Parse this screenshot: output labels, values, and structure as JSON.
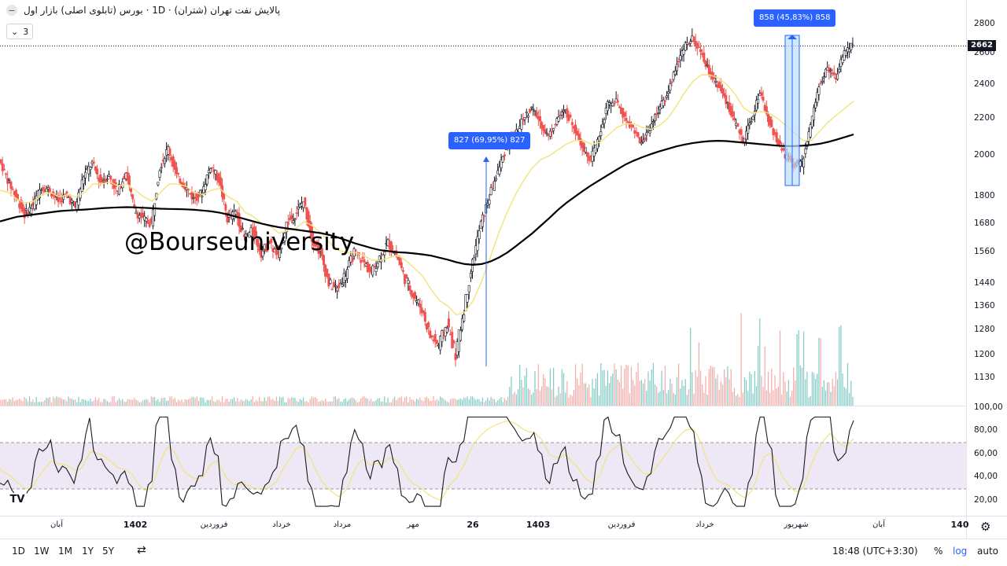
{
  "header": {
    "title": "پالایش نفت تهران (شتران) · 1D · بورس (تابلوی اصلی) بازار اول",
    "legend_value": "3"
  },
  "watermark": "@Bourseuniversity",
  "annotations": {
    "range1": "827 (69,95%) 827",
    "range2": "858 (45,83%) 858"
  },
  "current_price": "2662",
  "price_axis": [
    "2800",
    "2600",
    "2400",
    "2200",
    "2000",
    "1800",
    "1680",
    "1560",
    "1440",
    "1360",
    "1280",
    "1200",
    "1130"
  ],
  "rsi_axis": [
    "100,00",
    "80,00",
    "60,00",
    "40,00",
    "20,00"
  ],
  "time_axis": [
    {
      "label": "آبان",
      "bold": false
    },
    {
      "label": "1402",
      "bold": true
    },
    {
      "label": "فروردین",
      "bold": false
    },
    {
      "label": "خرداد",
      "bold": false
    },
    {
      "label": "مرداد",
      "bold": false
    },
    {
      "label": "مهر",
      "bold": false
    },
    {
      "label": "26",
      "bold": true
    },
    {
      "label": "1403",
      "bold": true
    },
    {
      "label": "فروردین",
      "bold": false
    },
    {
      "label": "خرداد",
      "bold": false
    },
    {
      "label": "شهریور",
      "bold": false
    },
    {
      "label": "آبان",
      "bold": false
    },
    {
      "label": "140",
      "bold": true
    }
  ],
  "toolbar": {
    "timeframes": [
      "1D",
      "1W",
      "1M",
      "1Y",
      "5Y"
    ],
    "time": "18:48 (UTC+3:30)",
    "percent": "%",
    "log": "log",
    "auto": "auto"
  },
  "colors": {
    "up": "#26a69a",
    "down": "#ef5350",
    "ma_fast": "#f2e47a",
    "ma_slow": "#000000",
    "rsi": "#1a1a1a",
    "rsi_band": "#ede7f6",
    "accent": "#2962ff"
  },
  "chart_data": {
    "type": "line",
    "title": "",
    "xlabel": "",
    "ylabel": "",
    "scale": "log",
    "ylim": [
      1080,
      2900
    ],
    "series": [
      {
        "values": [
          1980,
          1880,
          1800,
          1720,
          1760,
          1850,
          1830,
          1780,
          1810,
          1750,
          1900,
          1960,
          1870,
          1900,
          1820,
          1920,
          1740,
          1700,
          1680,
          1940,
          2040,
          1900,
          1850,
          1790,
          1820,
          1950,
          1880,
          1700,
          1730,
          1620,
          1650,
          1560,
          1600,
          1540,
          1680,
          1720,
          1780,
          1620,
          1560,
          1440,
          1420,
          1480,
          1560,
          1530,
          1480,
          1540,
          1600,
          1550,
          1460,
          1400,
          1350,
          1260,
          1230,
          1300,
          1200,
          1350,
          1520,
          1680,
          1800,
          1920,
          2040,
          2100,
          2200,
          2260,
          2180,
          2100,
          2200,
          2240,
          2160,
          2050,
          1980,
          2100,
          2280,
          2300,
          2200,
          2150,
          2060,
          2150,
          2250,
          2330,
          2500,
          2640,
          2700,
          2610,
          2480,
          2400,
          2300,
          2180,
          2080,
          2200,
          2350,
          2200,
          2080,
          2000,
          1950,
          1960,
          2150,
          2400,
          2500,
          2450,
          2600,
          2662
        ]
      },
      {
        "values": [
          1830,
          1820,
          1790,
          1770,
          1780,
          1810,
          1820,
          1800,
          1810,
          1800,
          1820,
          1860,
          1860,
          1870,
          1850,
          1860,
          1830,
          1800,
          1780,
          1820,
          1860,
          1860,
          1850,
          1820,
          1810,
          1830,
          1840,
          1800,
          1780,
          1730,
          1710,
          1680,
          1670,
          1640,
          1650,
          1660,
          1690,
          1670,
          1640,
          1600,
          1570,
          1560,
          1560,
          1550,
          1530,
          1530,
          1540,
          1550,
          1530,
          1500,
          1470,
          1420,
          1380,
          1360,
          1330,
          1340,
          1380,
          1450,
          1540,
          1640,
          1730,
          1810,
          1880,
          1940,
          1980,
          2000,
          2030,
          2060,
          2080,
          2080,
          2060,
          2070,
          2110,
          2150,
          2170,
          2170,
          2150,
          2140,
          2160,
          2200,
          2270,
          2350,
          2420,
          2460,
          2460,
          2440,
          2400,
          2340,
          2260,
          2230,
          2240,
          2230,
          2200,
          2160,
          2120,
          2080,
          2080,
          2130,
          2180,
          2220,
          2260,
          2300
        ]
      },
      {
        "values": [
          1690,
          1700,
          1710,
          1715,
          1720,
          1725,
          1730,
          1735,
          1738,
          1740,
          1742,
          1745,
          1748,
          1750,
          1752,
          1753,
          1752,
          1750,
          1748,
          1746,
          1745,
          1744,
          1743,
          1741,
          1738,
          1734,
          1728,
          1720,
          1710,
          1700,
          1690,
          1680,
          1672,
          1665,
          1660,
          1655,
          1650,
          1645,
          1640,
          1632,
          1622,
          1610,
          1598,
          1588,
          1578,
          1570,
          1566,
          1562,
          1560,
          1557,
          1553,
          1548,
          1540,
          1532,
          1522,
          1515,
          1512,
          1515,
          1525,
          1540,
          1560,
          1585,
          1612,
          1640,
          1672,
          1705,
          1740,
          1772,
          1800,
          1828,
          1855,
          1880,
          1905,
          1930,
          1955,
          1975,
          1992,
          2008,
          2022,
          2035,
          2048,
          2058,
          2066,
          2072,
          2076,
          2078,
          2076,
          2072,
          2068,
          2064,
          2060,
          2056,
          2052,
          2050,
          2050,
          2052,
          2056,
          2062,
          2072,
          2084,
          2098,
          2112
        ]
      }
    ]
  }
}
